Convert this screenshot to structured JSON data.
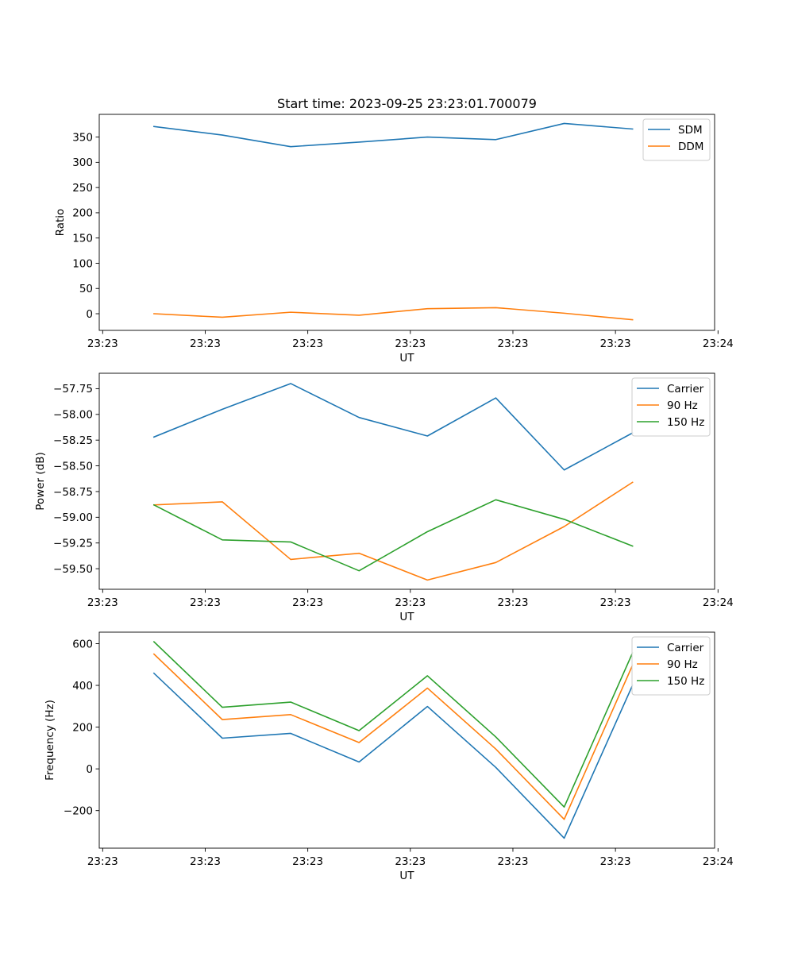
{
  "figure": {
    "title": "Start time: 2023-09-25 23:23:01.700079"
  },
  "chart_data": [
    {
      "type": "line",
      "title": "Start time: 2023-09-25 23:23:01.700079",
      "xlabel": "UT",
      "ylabel": "Ratio",
      "x": [
        1,
        2,
        3,
        4,
        5,
        6,
        7,
        8
      ],
      "xlim": [
        0.2,
        9.2
      ],
      "x_ticks": [
        0.25,
        1.75,
        3.25,
        4.75,
        6.25,
        7.75,
        9.25
      ],
      "x_tick_labels": [
        "23:23",
        "23:23",
        "23:23",
        "23:23",
        "23:23",
        "23:23",
        "23:24"
      ],
      "ylim": [
        -33,
        395
      ],
      "y_ticks": [
        0,
        50,
        100,
        150,
        200,
        250,
        300,
        350
      ],
      "y_tick_labels": [
        "0",
        "50",
        "100",
        "150",
        "200",
        "250",
        "300",
        "350"
      ],
      "legend": "top-right",
      "series": [
        {
          "name": "SDM",
          "color": "#1f77b4",
          "values": [
            371,
            354,
            331,
            340,
            350,
            345,
            377,
            366
          ]
        },
        {
          "name": "DDM",
          "color": "#ff7f0e",
          "values": [
            0,
            -7,
            3,
            -3,
            10,
            12,
            1,
            -12
          ]
        }
      ]
    },
    {
      "type": "line",
      "title": "",
      "xlabel": "UT",
      "ylabel": "Power (dB)",
      "x": [
        1,
        2,
        3,
        4,
        5,
        6,
        7,
        8
      ],
      "xlim": [
        0.2,
        9.2
      ],
      "x_ticks": [
        0.25,
        1.75,
        3.25,
        4.75,
        6.25,
        7.75,
        9.25
      ],
      "x_tick_labels": [
        "23:23",
        "23:23",
        "23:23",
        "23:23",
        "23:23",
        "23:23",
        "23:24"
      ],
      "ylim": [
        -59.7,
        -57.6
      ],
      "y_ticks": [
        -59.5,
        -59.25,
        -59.0,
        -58.75,
        -58.5,
        -58.25,
        -58.0,
        -57.75
      ],
      "y_tick_labels": [
        "−59.50",
        "−59.25",
        "−59.00",
        "−58.75",
        "−58.50",
        "−58.25",
        "−58.00",
        "−57.75"
      ],
      "legend": "top-right",
      "series": [
        {
          "name": "Carrier",
          "color": "#1f77b4",
          "values": [
            -58.22,
            -57.95,
            -57.7,
            -58.03,
            -58.21,
            -57.84,
            -58.54,
            -58.18
          ]
        },
        {
          "name": "90 Hz",
          "color": "#ff7f0e",
          "values": [
            -58.88,
            -58.85,
            -59.41,
            -59.35,
            -59.61,
            -59.44,
            -59.09,
            -58.66
          ]
        },
        {
          "name": "150 Hz",
          "color": "#2ca02c",
          "values": [
            -58.88,
            -59.22,
            -59.24,
            -59.52,
            -59.14,
            -58.83,
            -59.02,
            -59.28
          ]
        }
      ]
    },
    {
      "type": "line",
      "title": "",
      "xlabel": "UT",
      "ylabel": "Frequency (Hz)",
      "x": [
        1,
        2,
        3,
        4,
        5,
        6,
        7,
        8
      ],
      "xlim": [
        0.2,
        9.2
      ],
      "x_ticks": [
        0.25,
        1.75,
        3.25,
        4.75,
        6.25,
        7.75,
        9.25
      ],
      "x_tick_labels": [
        "23:23",
        "23:23",
        "23:23",
        "23:23",
        "23:23",
        "23:23",
        "23:24"
      ],
      "ylim": [
        -380,
        655
      ],
      "y_ticks": [
        -200,
        0,
        200,
        400,
        600
      ],
      "y_tick_labels": [
        "−200",
        "0",
        "200",
        "400",
        "600"
      ],
      "legend": "top-right",
      "series": [
        {
          "name": "Carrier",
          "color": "#1f77b4",
          "values": [
            458,
            147,
            170,
            33,
            299,
            7,
            -332,
            401
          ]
        },
        {
          "name": "90 Hz",
          "color": "#ff7f0e",
          "values": [
            550,
            236,
            260,
            126,
            387,
            95,
            -242,
            497
          ]
        },
        {
          "name": "150 Hz",
          "color": "#2ca02c",
          "values": [
            609,
            295,
            320,
            183,
            446,
            153,
            -183,
            556
          ]
        }
      ]
    }
  ]
}
